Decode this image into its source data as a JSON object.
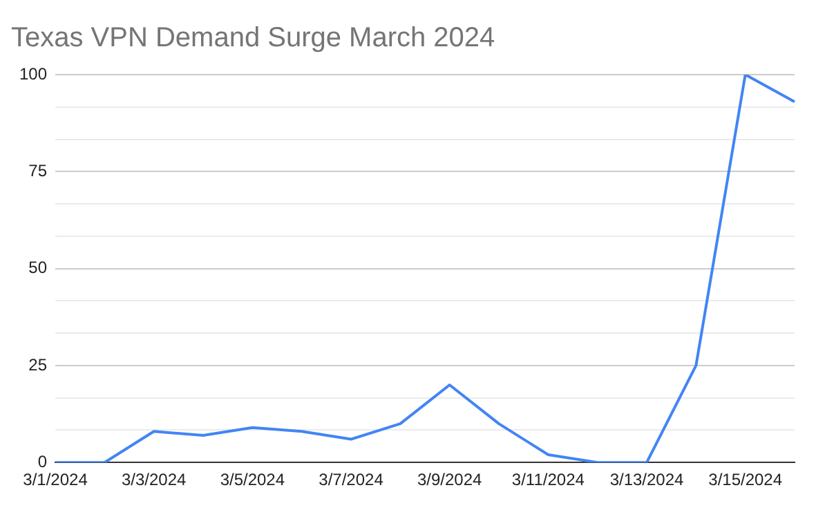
{
  "chart_data": {
    "type": "line",
    "title": "Texas VPN Demand Surge March 2024",
    "categories": [
      "3/1/2024",
      null,
      "3/3/2024",
      null,
      "3/5/2024",
      null,
      "3/7/2024",
      null,
      "3/9/2024",
      null,
      "3/11/2024",
      null,
      "3/13/2024",
      null,
      "3/15/2024",
      null
    ],
    "series": [
      {
        "color": "#4285f4",
        "values": [
          0,
          0,
          8,
          7,
          9,
          8,
          6,
          10,
          20,
          10,
          2,
          0,
          0,
          25,
          100,
          93
        ]
      }
    ],
    "ylim": [
      0,
      100
    ],
    "yticks": [
      0,
      {
        "value": 8.33,
        "label": null
      },
      {
        "value": 16.67,
        "label": null
      },
      25,
      {
        "value": 33.33,
        "label": null
      },
      {
        "value": 41.67,
        "label": null
      },
      50,
      {
        "value": 58.33,
        "label": null
      },
      {
        "value": 66.67,
        "label": null
      },
      75,
      {
        "value": 83.33,
        "label": null
      },
      {
        "value": 91.67,
        "label": null
      },
      100
    ],
    "grid": "y",
    "legend": false,
    "marker": "none",
    "line_style": "solid"
  }
}
